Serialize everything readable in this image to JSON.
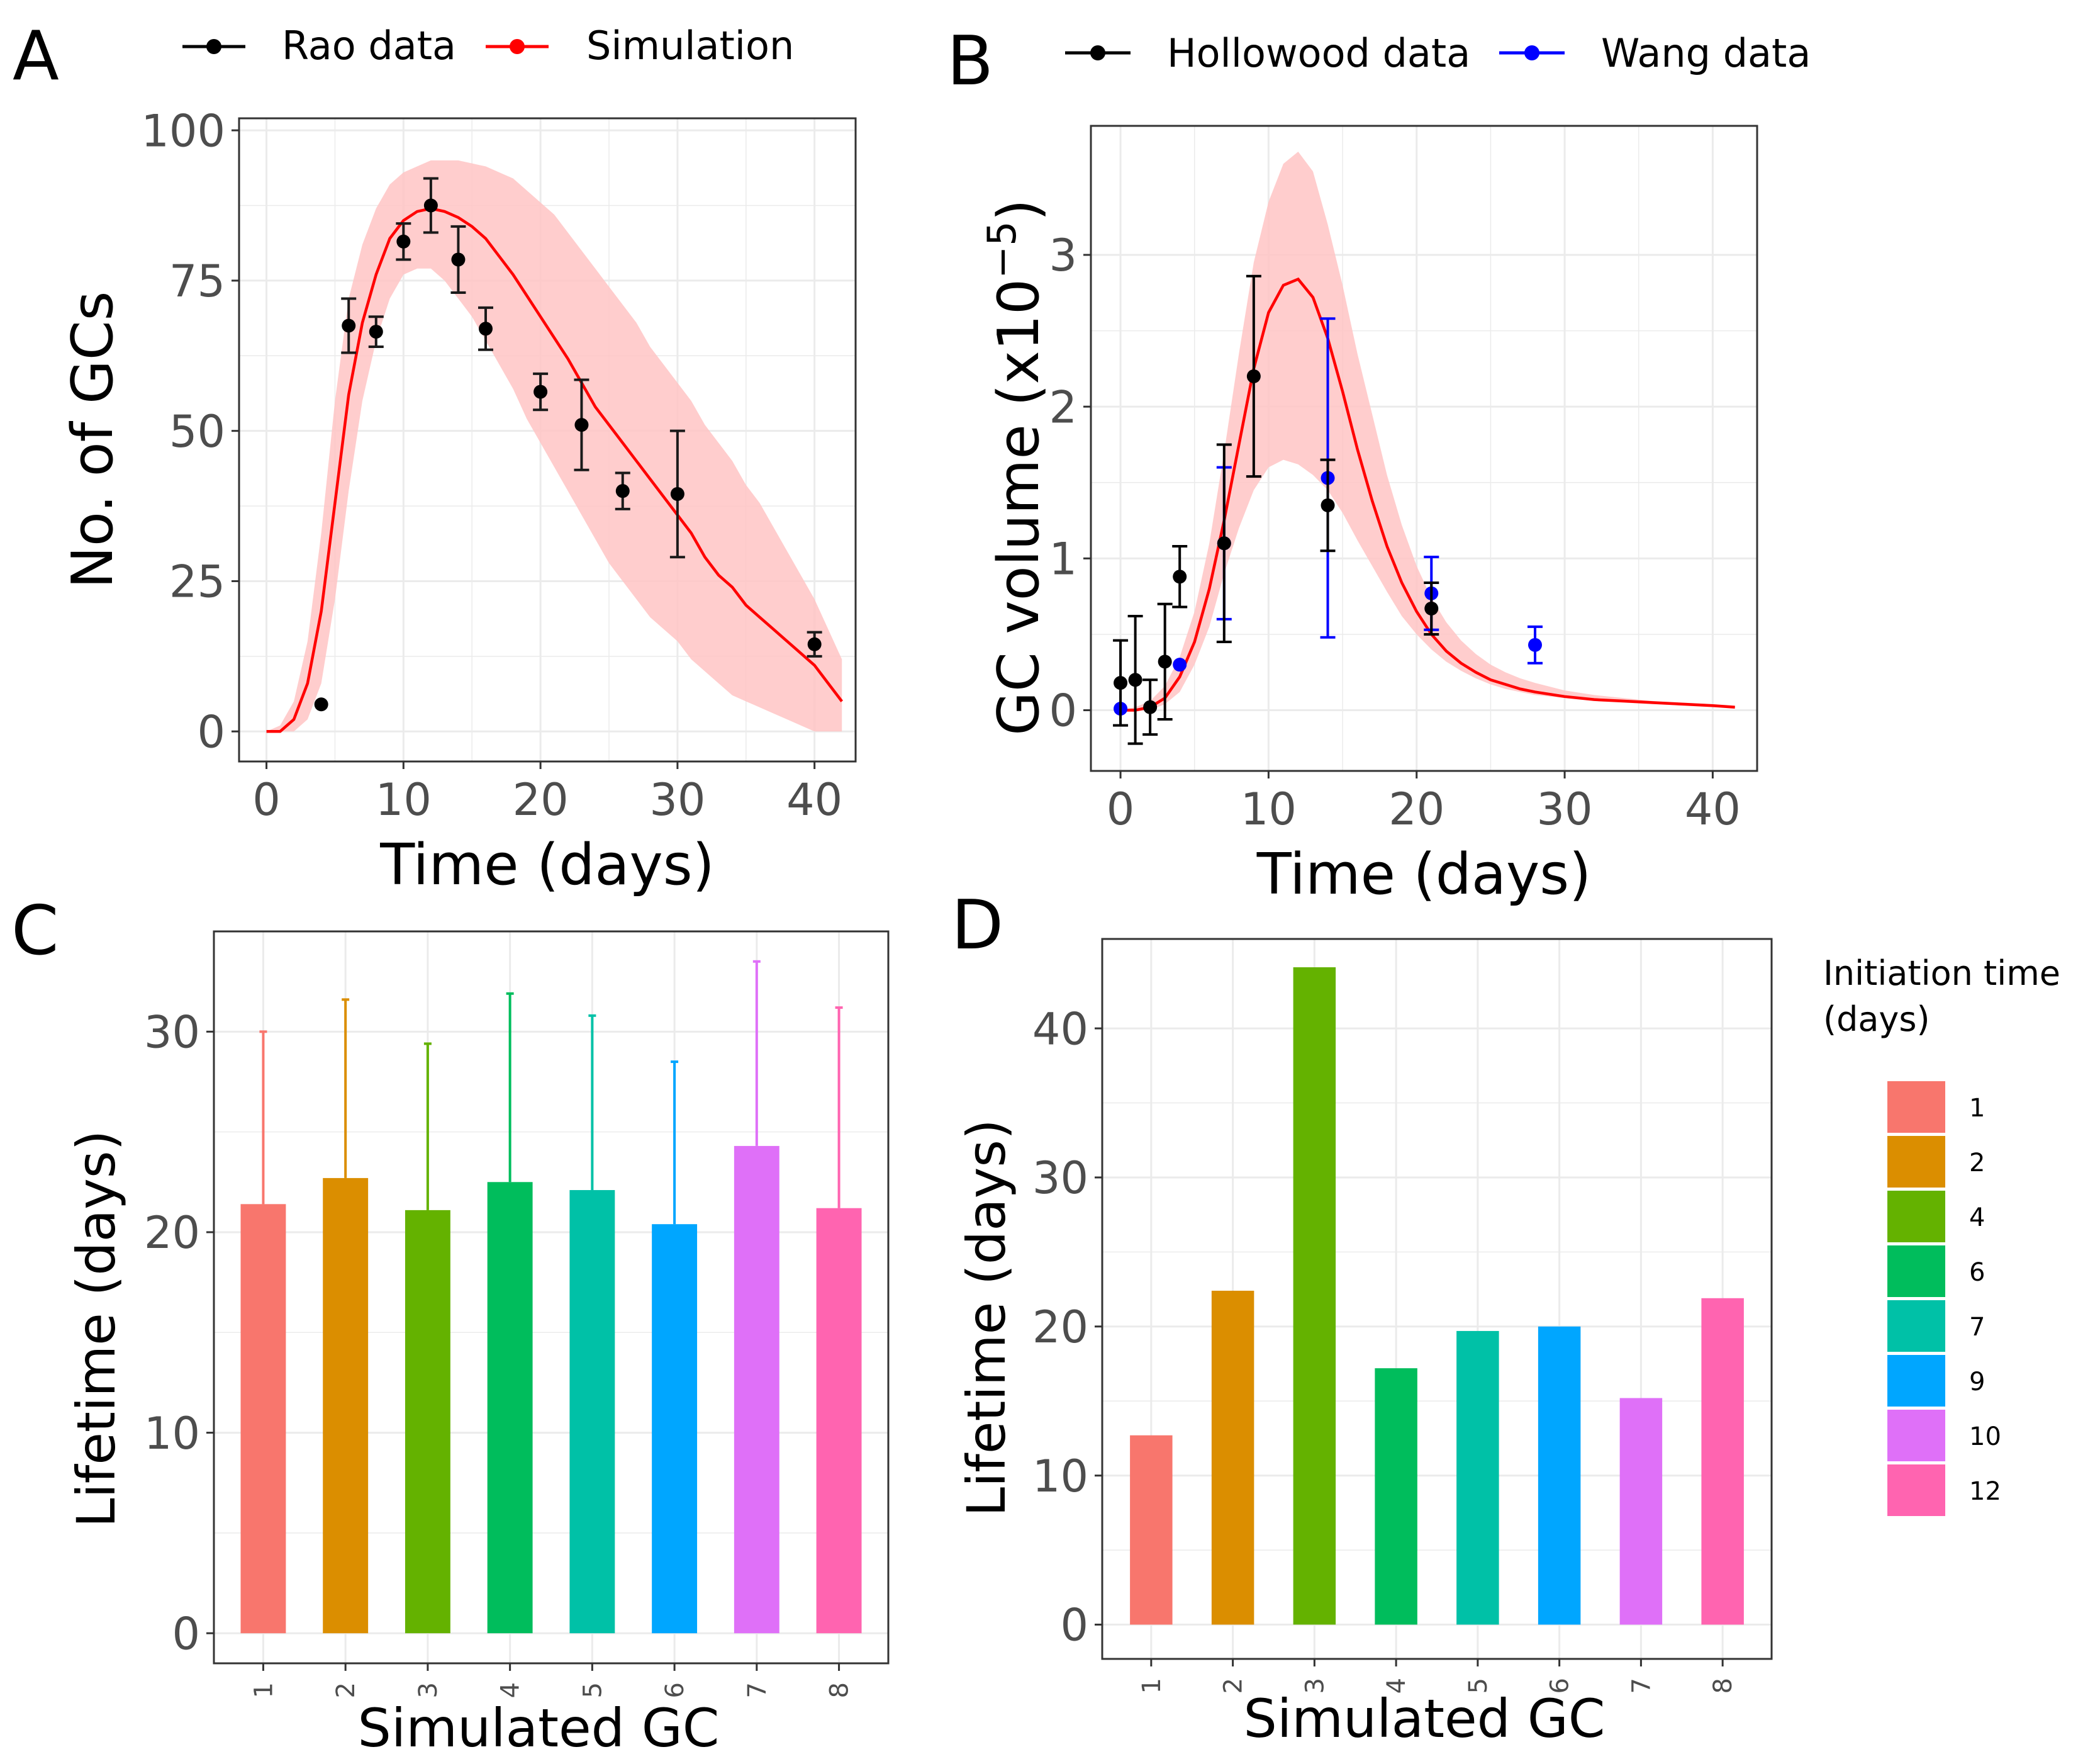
{
  "colors": {
    "rao": "#000000",
    "simulation": "#ff0000",
    "simulation_band": "#ffc4c4",
    "hollowood": "#000000",
    "wang": "#0000ff",
    "errorbar_dark": "#1a1a1a",
    "grid": "#ebebeb",
    "panel_border": "#333333",
    "tick_label": "#4d4d4d"
  },
  "panels": [
    {
      "id": "A",
      "label": "A"
    },
    {
      "id": "B",
      "label": "B"
    },
    {
      "id": "C",
      "label": "C"
    },
    {
      "id": "D",
      "label": "D"
    }
  ],
  "chart_data": [
    {
      "panel": "A",
      "type": "line",
      "title": "",
      "xlabel": "Time (days)",
      "ylabel": "No. of GCs",
      "xlim": [
        -2,
        43
      ],
      "ylim": [
        -5,
        102
      ],
      "xticks": [
        0,
        10,
        20,
        30,
        40
      ],
      "yticks": [
        0,
        25,
        50,
        75,
        100
      ],
      "legend": {
        "position": "top",
        "entries": [
          {
            "name": "Rao data",
            "color": "#000000"
          },
          {
            "name": "Simulation",
            "color": "#ff0000"
          }
        ]
      },
      "series": [
        {
          "name": "Simulation",
          "kind": "line",
          "x": [
            0,
            1,
            2,
            3,
            4,
            5,
            6,
            7,
            8,
            9,
            10,
            11,
            12,
            13,
            14,
            15,
            16,
            17,
            18,
            19,
            20,
            21,
            22,
            23,
            24,
            25,
            26,
            27,
            28,
            29,
            30,
            31,
            32,
            33,
            34,
            35,
            36,
            37,
            38,
            39,
            40,
            41,
            42
          ],
          "y": [
            0,
            0,
            2,
            8,
            20,
            38,
            56,
            68,
            76,
            82,
            85,
            86.5,
            87,
            86.5,
            85.5,
            84,
            82,
            79,
            76,
            72.5,
            69,
            65.5,
            62,
            58,
            54,
            51,
            48,
            45,
            42,
            39,
            36,
            33,
            29,
            26,
            24,
            21,
            19,
            17,
            15,
            13,
            11,
            8,
            5
          ],
          "lower": [
            0,
            0,
            0,
            2,
            8,
            22,
            40,
            55,
            65,
            72,
            76,
            77,
            77,
            75,
            72,
            69,
            65,
            61,
            57,
            52,
            48,
            44,
            40,
            36,
            32,
            28,
            25,
            22,
            19,
            17,
            15,
            12,
            10,
            8,
            6,
            5,
            4,
            3,
            2,
            1,
            0,
            0,
            0
          ],
          "upper": [
            0,
            1,
            5,
            15,
            33,
            55,
            72,
            81,
            87,
            91,
            93,
            94,
            95,
            95,
            95,
            94.5,
            94,
            93,
            92,
            90,
            88,
            86,
            83,
            80,
            77,
            74,
            71,
            68,
            64,
            61,
            58,
            55,
            51,
            48,
            45,
            41,
            38,
            34,
            30,
            26,
            22,
            17,
            12
          ]
        },
        {
          "name": "Rao data",
          "kind": "points",
          "x": [
            4,
            6,
            8,
            10,
            12,
            14,
            16,
            20,
            23,
            26,
            30,
            40
          ],
          "y": [
            4.5,
            67.5,
            66.5,
            81.5,
            87.5,
            78.5,
            67,
            56.5,
            51,
            40,
            39.5,
            14.5
          ],
          "err": [
            0,
            4.5,
            2.5,
            3,
            4.5,
            5.5,
            3.5,
            3,
            7.5,
            3,
            10.5,
            2
          ]
        }
      ]
    },
    {
      "panel": "B",
      "type": "line",
      "title": "",
      "xlabel": "Time (days)",
      "ylabel": "GC volume  (x10",
      "ylabel_exponent": "−5",
      "ylabel_suffix": ")",
      "xlim": [
        -2,
        43
      ],
      "ylim": [
        -0.4,
        3.85
      ],
      "xticks": [
        0,
        10,
        20,
        30,
        40
      ],
      "yticks": [
        0,
        1,
        2,
        3
      ],
      "legend": {
        "position": "top",
        "entries": [
          {
            "name": "Hollowood data",
            "color": "#000000"
          },
          {
            "name": "Wang data",
            "color": "#0000ff"
          }
        ]
      },
      "series": [
        {
          "name": "Simulation",
          "kind": "line",
          "x": [
            0,
            1,
            2,
            3,
            4,
            5,
            6,
            7,
            8,
            9,
            10,
            11,
            12,
            13,
            14,
            15,
            16,
            17,
            18,
            19,
            20,
            21,
            22,
            23,
            24,
            25,
            26,
            27,
            28,
            30,
            32,
            34,
            36,
            38,
            40,
            41.5
          ],
          "y": [
            0,
            0,
            0.02,
            0.08,
            0.22,
            0.45,
            0.8,
            1.25,
            1.75,
            2.25,
            2.62,
            2.8,
            2.84,
            2.72,
            2.45,
            2.1,
            1.72,
            1.38,
            1.08,
            0.84,
            0.65,
            0.5,
            0.39,
            0.31,
            0.25,
            0.2,
            0.17,
            0.14,
            0.12,
            0.09,
            0.07,
            0.06,
            0.05,
            0.04,
            0.03,
            0.02
          ],
          "lower": [
            0,
            0,
            0,
            0.04,
            0.12,
            0.3,
            0.55,
            0.9,
            1.2,
            1.45,
            1.6,
            1.65,
            1.62,
            1.55,
            1.45,
            1.3,
            1.12,
            0.95,
            0.78,
            0.62,
            0.5,
            0.4,
            0.32,
            0.26,
            0.21,
            0.17,
            0.14,
            0.12,
            0.1,
            0.08,
            0.06,
            0.05,
            0.04,
            0.03,
            0.02,
            0.02
          ],
          "upper": [
            0,
            0.02,
            0.06,
            0.16,
            0.35,
            0.65,
            1.1,
            1.7,
            2.35,
            2.95,
            3.35,
            3.6,
            3.68,
            3.55,
            3.2,
            2.8,
            2.35,
            1.95,
            1.55,
            1.22,
            0.95,
            0.74,
            0.58,
            0.46,
            0.37,
            0.3,
            0.25,
            0.21,
            0.18,
            0.13,
            0.1,
            0.08,
            0.06,
            0.05,
            0.04,
            0.03
          ]
        },
        {
          "name": "Hollowood data",
          "kind": "points",
          "x": [
            0,
            1,
            2,
            3,
            4,
            7,
            9,
            14,
            21
          ],
          "y": [
            0.18,
            0.2,
            0.02,
            0.32,
            0.88,
            1.1,
            2.2,
            1.35,
            0.67
          ],
          "err": [
            0.28,
            0.42,
            0.18,
            0.38,
            0.2,
            0.65,
            0.66,
            0.3,
            0.17
          ]
        },
        {
          "name": "Wang data",
          "kind": "points",
          "x": [
            0,
            4,
            7,
            14,
            21,
            28
          ],
          "y": [
            0.01,
            0.3,
            1.1,
            1.53,
            0.77,
            0.43
          ],
          "err": [
            0,
            0,
            0.5,
            1.05,
            0.24,
            0.12
          ]
        }
      ]
    },
    {
      "panel": "C",
      "type": "bar",
      "title": "",
      "xlabel": "Simulated GC",
      "ylabel": "Lifetime (days)",
      "ylim": [
        -1.5,
        35
      ],
      "yticks": [
        0,
        10,
        20,
        30
      ],
      "categories": [
        "1",
        "2",
        "3",
        "4",
        "5",
        "6",
        "7",
        "8"
      ],
      "values": [
        21.4,
        22.7,
        21.1,
        22.5,
        22.1,
        20.4,
        24.3,
        21.2
      ],
      "err_upper": [
        30.0,
        31.6,
        29.4,
        31.9,
        30.8,
        28.5,
        33.5,
        31.2
      ],
      "bar_colors": [
        "#f8766d",
        "#db8e00",
        "#64b200",
        "#00bd5c",
        "#00c1a7",
        "#00a6ff",
        "#df70f8",
        "#ff64b0"
      ]
    },
    {
      "panel": "D",
      "type": "bar",
      "title": "",
      "xlabel": "Simulated GC",
      "ylabel": "Lifetime (days)",
      "ylim": [
        -2.3,
        46
      ],
      "yticks": [
        0,
        10,
        20,
        30,
        40
      ],
      "categories": [
        "1",
        "2",
        "3",
        "4",
        "5",
        "6",
        "7",
        "8"
      ],
      "values": [
        12.7,
        22.4,
        44.1,
        17.2,
        19.7,
        20.0,
        15.2,
        21.9
      ],
      "bar_colors": [
        "#f8766d",
        "#db8e00",
        "#64b200",
        "#00bd5c",
        "#00c1a7",
        "#00a6ff",
        "#df70f8",
        "#ff64b0"
      ],
      "legend": {
        "title_line1": "Initiation time",
        "title_line2": "(days)",
        "entries": [
          {
            "label": "1",
            "color": "#f8766d"
          },
          {
            "label": "2",
            "color": "#db8e00"
          },
          {
            "label": "4",
            "color": "#64b200"
          },
          {
            "label": "6",
            "color": "#00bd5c"
          },
          {
            "label": "7",
            "color": "#00c1a7"
          },
          {
            "label": "9",
            "color": "#00a6ff"
          },
          {
            "label": "10",
            "color": "#df70f8"
          },
          {
            "label": "12",
            "color": "#ff64b0"
          }
        ]
      }
    }
  ]
}
